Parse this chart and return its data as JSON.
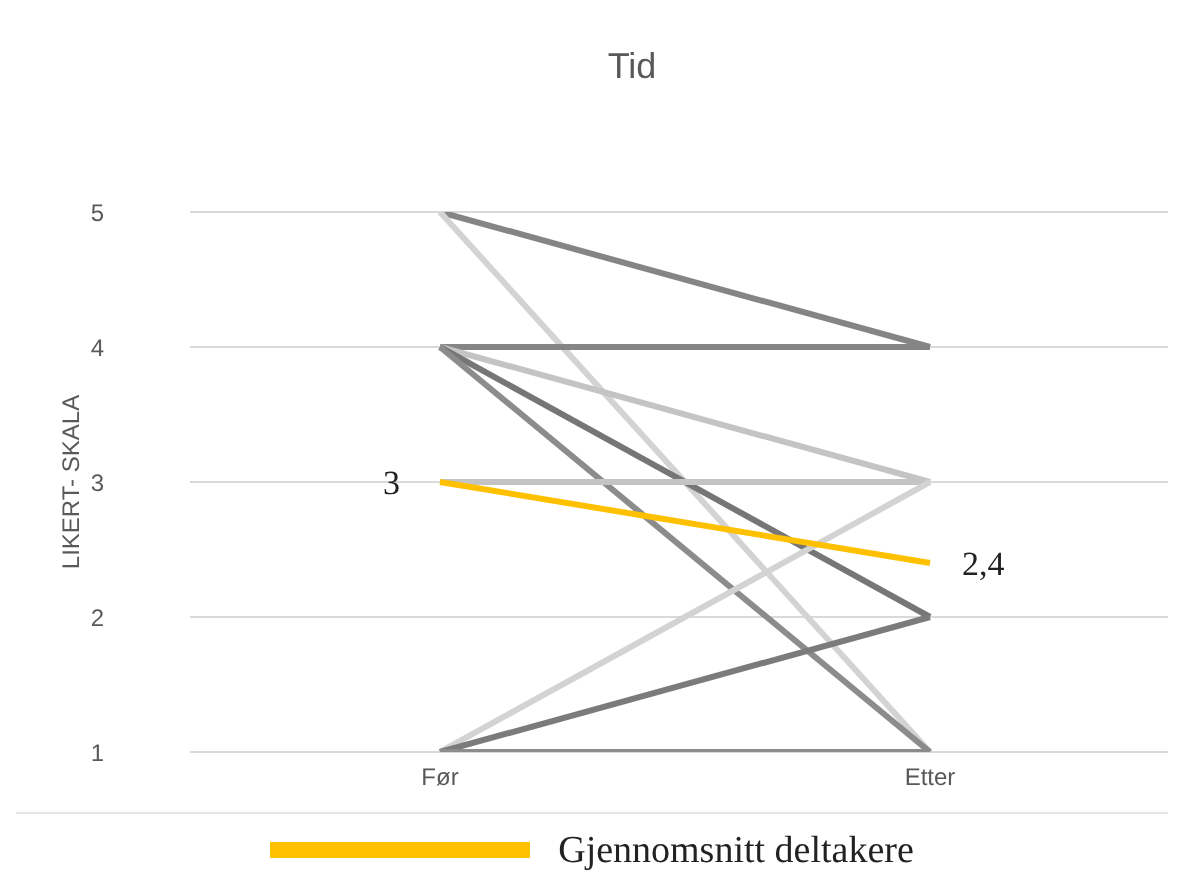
{
  "chart_data": {
    "type": "line",
    "title": "Tid",
    "ylabel": "LIKERT- SKALA",
    "categories": [
      "Før",
      "Etter"
    ],
    "ylim": [
      1,
      5
    ],
    "yticks": [
      1,
      2,
      3,
      4,
      5
    ],
    "grid": "y",
    "legend": "bottom",
    "marker": "none",
    "line_style": "solid",
    "series": [
      {
        "color": "#858585",
        "values": [
          5,
          4
        ]
      },
      {
        "color": "#d3d3d3",
        "values": [
          5,
          1
        ]
      },
      {
        "color": "#858585",
        "values": [
          4,
          4
        ]
      },
      {
        "color": "#c4c4c4",
        "values": [
          4,
          3
        ]
      },
      {
        "color": "#767676",
        "values": [
          4,
          2
        ]
      },
      {
        "color": "#8c8c8c",
        "values": [
          4,
          1
        ]
      },
      {
        "color": "#c4c4c4",
        "values": [
          3,
          3
        ]
      },
      {
        "color": "#d3d3d3",
        "values": [
          1,
          3
        ]
      },
      {
        "color": "#7b7b7b",
        "values": [
          1,
          2
        ]
      },
      {
        "color": "#8c8c8c",
        "values": [
          1,
          1
        ]
      },
      {
        "name": "Gjennomsnitt deltakere",
        "color": "#ffc000",
        "values": [
          3,
          2.4
        ],
        "value_labels": [
          "3",
          "2,4"
        ]
      }
    ]
  }
}
